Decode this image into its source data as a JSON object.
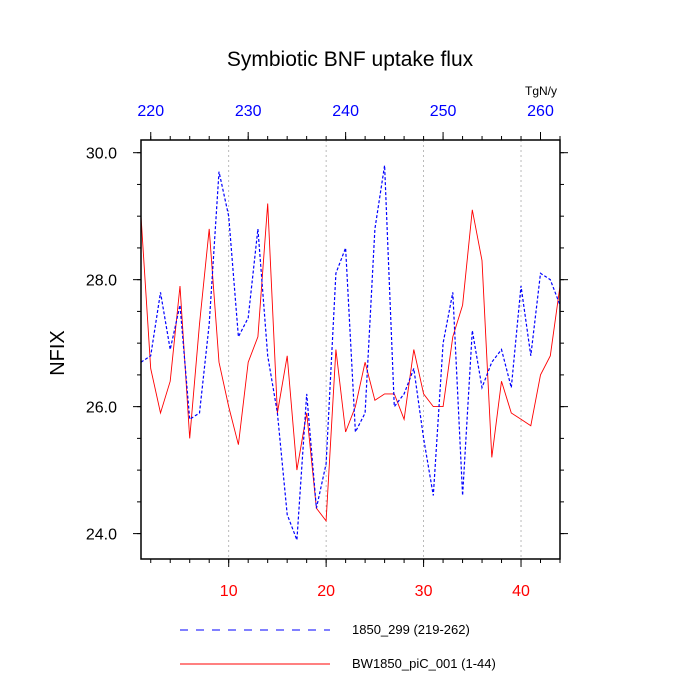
{
  "chart_data": {
    "type": "line",
    "title": "Symbiotic BNF uptake flux",
    "ylabel": "NFIX",
    "units": "TgN/y",
    "ylim": [
      23.6,
      30.2
    ],
    "y_ticks": [
      "24.0",
      "26.0",
      "28.0",
      "30.0"
    ],
    "bottom_axis": {
      "xlim": [
        1,
        44
      ],
      "ticks": [
        "10",
        "20",
        "30",
        "40"
      ],
      "color": "#ff0000"
    },
    "top_axis": {
      "xlim": [
        219,
        262
      ],
      "ticks": [
        "220",
        "230",
        "240",
        "250",
        "260"
      ],
      "color": "#0000ff"
    },
    "grid": "vertical dotted at bottom-axis major ticks",
    "legend_position": "bottom",
    "series": [
      {
        "name": "1850_299 (219-262)",
        "color": "#0000ff",
        "dash": "dashed",
        "x": [
          219,
          220,
          221,
          222,
          223,
          224,
          225,
          226,
          227,
          228,
          229,
          230,
          231,
          232,
          233,
          234,
          235,
          236,
          237,
          238,
          239,
          240,
          241,
          242,
          243,
          244,
          245,
          246,
          247,
          248,
          249,
          250,
          251,
          252,
          253,
          254,
          255,
          256,
          257,
          258,
          259,
          260,
          261,
          262
        ],
        "values": [
          26.7,
          26.8,
          27.8,
          26.9,
          27.6,
          25.8,
          25.9,
          27.3,
          29.7,
          29.0,
          27.1,
          27.4,
          28.8,
          26.8,
          25.9,
          24.3,
          23.9,
          26.2,
          24.4,
          25.1,
          28.1,
          28.5,
          25.6,
          25.9,
          28.8,
          29.8,
          26.0,
          26.2,
          26.6,
          25.5,
          24.6,
          27.0,
          27.8,
          24.6,
          27.2,
          26.3,
          26.7,
          26.9,
          26.3,
          27.9,
          26.8,
          28.1,
          28.0,
          27.6
        ]
      },
      {
        "name": "BW1850_piC_001 (1-44)",
        "color": "#ff0000",
        "dash": "solid",
        "x": [
          1,
          2,
          3,
          4,
          5,
          6,
          7,
          8,
          9,
          10,
          11,
          12,
          13,
          14,
          15,
          16,
          17,
          18,
          19,
          20,
          21,
          22,
          23,
          24,
          25,
          26,
          27,
          28,
          29,
          30,
          31,
          32,
          33,
          34,
          35,
          36,
          37,
          38,
          39,
          40,
          41,
          42,
          43,
          44
        ],
        "values": [
          29.0,
          26.6,
          25.9,
          26.4,
          27.9,
          25.5,
          27.3,
          28.8,
          26.7,
          26.0,
          25.4,
          26.7,
          27.1,
          29.2,
          25.9,
          26.8,
          25.0,
          25.9,
          24.4,
          24.2,
          26.9,
          25.6,
          26.0,
          26.7,
          26.1,
          26.2,
          26.2,
          25.8,
          26.9,
          26.2,
          26.0,
          26.0,
          27.1,
          27.6,
          29.1,
          28.3,
          25.2,
          26.4,
          25.9,
          25.8,
          25.7,
          26.5,
          26.8,
          27.9
        ]
      }
    ]
  }
}
